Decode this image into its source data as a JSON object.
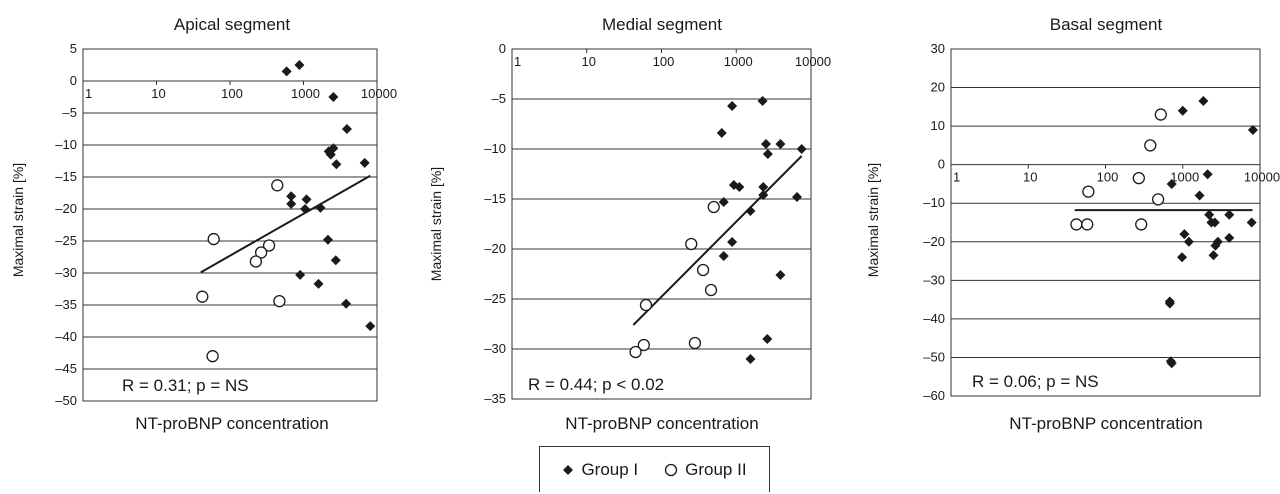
{
  "charts": [
    {
      "title": "Apical segment",
      "xlabel": "NT-proBNP concentration",
      "ylabel": "Maximal strain [%]",
      "ylim": [
        -50,
        5
      ],
      "yticks": [
        5,
        0,
        -5,
        -10,
        -15,
        -20,
        -25,
        -30,
        -35,
        -40,
        -45,
        -50
      ],
      "ytick_labels": [
        "5",
        "0",
        "–5",
        "–10",
        "–15",
        "–20",
        "–25",
        "–30",
        "–35",
        "–40",
        "–45",
        "–50"
      ],
      "annotation": "R = 0.31; p = NS"
    },
    {
      "title": "Medial segment",
      "xlabel": "NT-proBNP concentration",
      "ylabel": "Maximal strain [%]",
      "ylim": [
        -35,
        0
      ],
      "yticks": [
        0,
        -5,
        -10,
        -15,
        -20,
        -25,
        -30,
        -35
      ],
      "ytick_labels": [
        "0",
        "–5",
        "–10",
        "–15",
        "–20",
        "–25",
        "–30",
        "–35"
      ],
      "annotation": "R = 0.44; p < 0.02"
    },
    {
      "title": "Basal segment",
      "xlabel": "NT-proBNP concentration",
      "ylabel": "Maximal strain [%]",
      "ylim": [
        -60,
        30
      ],
      "yticks": [
        30,
        20,
        10,
        0,
        -10,
        -20,
        -30,
        -40,
        -50,
        -60
      ],
      "ytick_labels": [
        "30",
        "20",
        "10",
        "0",
        "–10",
        "–20",
        "–30",
        "–40",
        "–50",
        "–60"
      ],
      "annotation": "R = 0.06; p = NS"
    }
  ],
  "xtick_labels": [
    "1",
    "10",
    "100",
    "1000",
    "10000"
  ],
  "legend": {
    "group1": "Group I",
    "group2": "Group II"
  },
  "colors": {
    "ink": "#1a1a1a",
    "grid": "#333333"
  },
  "chart_data": [
    {
      "type": "scatter",
      "title": "Apical segment",
      "xlabel": "NT-proBNP concentration",
      "ylabel": "Maximal strain [%]",
      "xscale": "log",
      "xlim": [
        1,
        10000
      ],
      "ylim": [
        -50,
        5
      ],
      "grid": "horizontal",
      "series": [
        {
          "name": "Group I",
          "marker": "diamond",
          "points": [
            [
              590,
              1.5
            ],
            [
              880,
              2.5
            ],
            [
              2550,
              -2.5
            ],
            [
              3900,
              -7.5
            ],
            [
              2200,
              -11
            ],
            [
              2550,
              -10.5
            ],
            [
              2350,
              -11.5
            ],
            [
              2800,
              -13
            ],
            [
              6800,
              -12.8
            ],
            [
              1100,
              -18.5
            ],
            [
              680,
              -18
            ],
            [
              680,
              -19.2
            ],
            [
              1050,
              -20
            ],
            [
              1700,
              -19.8
            ],
            [
              2150,
              -24.8
            ],
            [
              2750,
              -28
            ],
            [
              900,
              -30.3
            ],
            [
              1600,
              -31.7
            ],
            [
              3800,
              -34.8
            ],
            [
              8100,
              -38.3
            ]
          ]
        },
        {
          "name": "Group II",
          "marker": "circle",
          "points": [
            [
              60,
              -24.7
            ],
            [
              440,
              -16.3
            ],
            [
              340,
              -25.7
            ],
            [
              265,
              -26.8
            ],
            [
              225,
              -28.2
            ],
            [
              470,
              -34.4
            ],
            [
              42,
              -33.7
            ],
            [
              58,
              -43
            ]
          ]
        }
      ],
      "trendline": {
        "x": [
          40,
          8100
        ],
        "y": [
          -29.9,
          -14.8
        ]
      }
    },
    {
      "type": "scatter",
      "title": "Medial segment",
      "xlabel": "NT-proBNP concentration",
      "ylabel": "Maximal strain [%]",
      "xscale": "log",
      "xlim": [
        1,
        10000
      ],
      "ylim": [
        -35,
        0
      ],
      "grid": "horizontal",
      "series": [
        {
          "name": "Group I",
          "marker": "diamond",
          "points": [
            [
              880,
              -5.7
            ],
            [
              2250,
              -5.2
            ],
            [
              640,
              -8.4
            ],
            [
              2500,
              -9.5
            ],
            [
              2650,
              -10.5
            ],
            [
              3900,
              -9.5
            ],
            [
              7500,
              -10
            ],
            [
              930,
              -13.6
            ],
            [
              1100,
              -13.8
            ],
            [
              2300,
              -13.8
            ],
            [
              2300,
              -14.6
            ],
            [
              1550,
              -16.2
            ],
            [
              680,
              -15.3
            ],
            [
              6500,
              -14.8
            ],
            [
              880,
              -19.3
            ],
            [
              680,
              -20.7
            ],
            [
              3900,
              -22.6
            ],
            [
              2600,
              -29
            ],
            [
              1550,
              -31
            ]
          ]
        },
        {
          "name": "Group II",
          "marker": "circle",
          "points": [
            [
              500,
              -15.8
            ],
            [
              250,
              -19.5
            ],
            [
              360,
              -22.1
            ],
            [
              460,
              -24.1
            ],
            [
              62,
              -25.6
            ],
            [
              58,
              -29.6
            ],
            [
              280,
              -29.4
            ],
            [
              45,
              -30.3
            ]
          ]
        }
      ],
      "trendline": {
        "x": [
          42,
          7500
        ],
        "y": [
          -27.6,
          -10.7
        ]
      }
    },
    {
      "type": "scatter",
      "title": "Basal segment",
      "xlabel": "NT-proBNP concentration",
      "ylabel": "Maximal strain [%]",
      "xscale": "log",
      "xlim": [
        1,
        10000
      ],
      "ylim": [
        -60,
        30
      ],
      "grid": "horizontal",
      "series": [
        {
          "name": "Group I",
          "marker": "diamond",
          "points": [
            [
              1850,
              16.5
            ],
            [
              1000,
              14
            ],
            [
              8100,
              9
            ],
            [
              2100,
              -2.5
            ],
            [
              720,
              -5
            ],
            [
              1650,
              -8
            ],
            [
              1050,
              -18
            ],
            [
              2200,
              -13
            ],
            [
              2350,
              -15
            ],
            [
              2600,
              -15
            ],
            [
              4000,
              -13
            ],
            [
              7800,
              -15
            ],
            [
              1200,
              -20
            ],
            [
              4000,
              -19
            ],
            [
              2850,
              -20
            ],
            [
              2650,
              -21
            ],
            [
              980,
              -24
            ],
            [
              2500,
              -23.5
            ],
            [
              680,
              -35.5
            ],
            [
              680,
              -36
            ],
            [
              700,
              -51
            ],
            [
              720,
              -51.5
            ]
          ]
        },
        {
          "name": "Group II",
          "marker": "circle",
          "points": [
            [
              520,
              13
            ],
            [
              380,
              5
            ],
            [
              60,
              -7
            ],
            [
              270,
              -3.5
            ],
            [
              480,
              -9
            ],
            [
              42,
              -15.5
            ],
            [
              58,
              -15.5
            ],
            [
              290,
              -15.5
            ]
          ]
        }
      ],
      "trendline": {
        "x": [
          40,
          8000
        ],
        "y": [
          -11.8,
          -11.8
        ]
      }
    }
  ]
}
